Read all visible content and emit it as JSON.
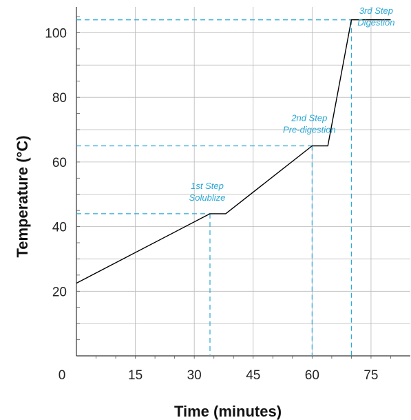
{
  "chart_data": {
    "type": "line",
    "xlabel": "Time (minutes)",
    "ylabel": "Temperature (°C)",
    "xlim": [
      0,
      85
    ],
    "ylim": [
      0,
      108
    ],
    "x_ticks": [
      0,
      15,
      30,
      45,
      60,
      75
    ],
    "y_ticks": [
      20,
      40,
      60,
      80,
      100
    ],
    "grid": true,
    "series": [
      {
        "x": [
          0,
          34,
          38,
          60,
          64,
          70,
          80
        ],
        "y": [
          22.5,
          44,
          44,
          65,
          65,
          104,
          104
        ],
        "color": "#000000"
      }
    ],
    "annotations": [
      {
        "line1": "1st Step",
        "line2": "Solublize",
        "x": 34,
        "y": 44
      },
      {
        "line1": "2nd Step",
        "line2": "Pre-digestion",
        "x": 60,
        "y": 65
      },
      {
        "line1": "3rd Step",
        "line2": "Digestion",
        "x": 70,
        "y": 104
      }
    ],
    "guide_color": "#29a8d6"
  }
}
